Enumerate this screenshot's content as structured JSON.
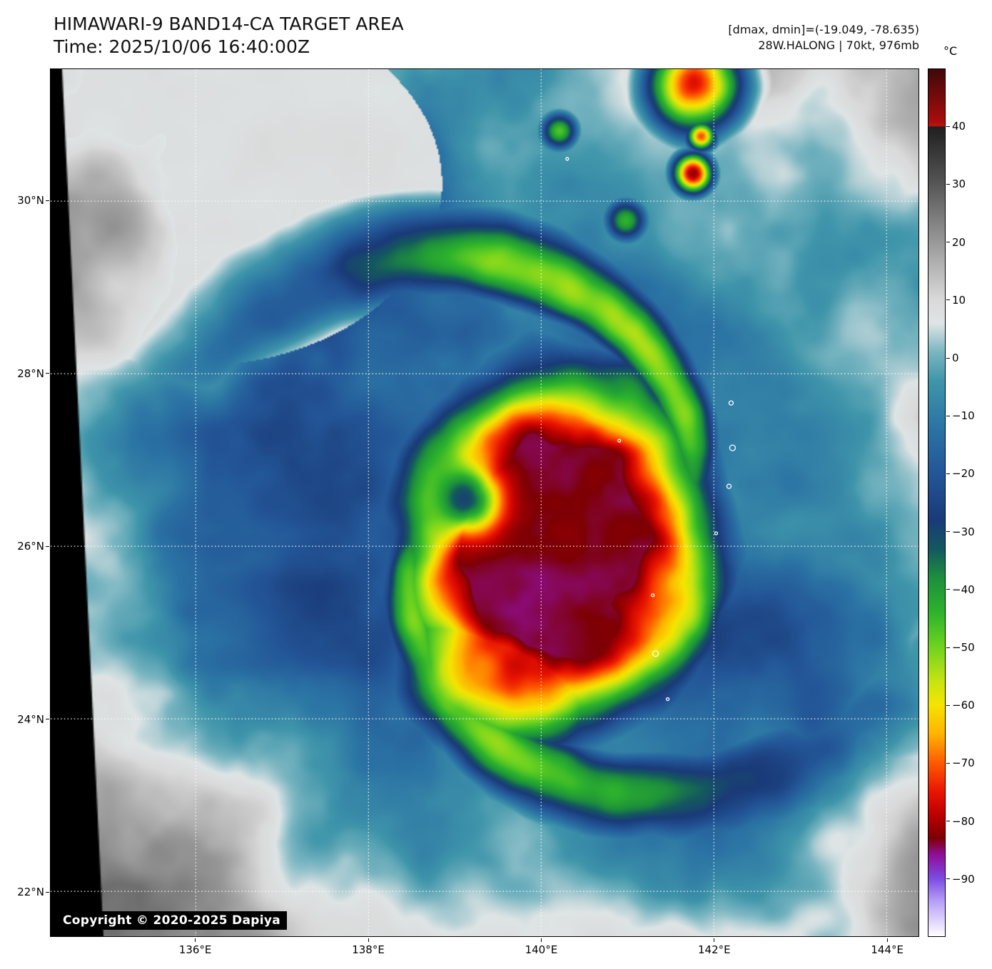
{
  "header": {
    "title": "HIMAWARI-9 BAND14-CA TARGET AREA",
    "time": "Time: 2025/10/06 16:40:00Z",
    "dmax_dmin": "[dmax, dmin]=(-19.049, -78.635)",
    "storm_info": "28W.HALONG | 70kt, 976mb"
  },
  "map": {
    "copyright": "Copyright © 2020-2025 Dapiya",
    "lat_ticks": [
      {
        "label": "30°N",
        "value": 30
      },
      {
        "label": "28°N",
        "value": 28
      },
      {
        "label": "26°N",
        "value": 26
      },
      {
        "label": "24°N",
        "value": 24
      },
      {
        "label": "22°N",
        "value": 22
      }
    ],
    "lon_ticks": [
      {
        "label": "136°E",
        "value": 136
      },
      {
        "label": "138°E",
        "value": 138
      },
      {
        "label": "140°E",
        "value": 140
      },
      {
        "label": "142°E",
        "value": 142
      },
      {
        "label": "144°E",
        "value": 144
      }
    ]
  },
  "colorbar": {
    "unit": "°C",
    "ticks": [
      {
        "label": "40",
        "value": 40
      },
      {
        "label": "30",
        "value": 30
      },
      {
        "label": "20",
        "value": 20
      },
      {
        "label": "10",
        "value": 10
      },
      {
        "label": "0",
        "value": 0
      },
      {
        "label": "−10",
        "value": -10
      },
      {
        "label": "−20",
        "value": -20
      },
      {
        "label": "−30",
        "value": -30
      },
      {
        "label": "−40",
        "value": -40
      },
      {
        "label": "−50",
        "value": -50
      },
      {
        "label": "−60",
        "value": -60
      },
      {
        "label": "−70",
        "value": -70
      },
      {
        "label": "−80",
        "value": -80
      },
      {
        "label": "−90",
        "value": -90
      }
    ],
    "stops": [
      {
        "t": 50,
        "c": "#3f0808"
      },
      {
        "t": 41,
        "c": "#a80d0d"
      },
      {
        "t": 40.2,
        "c": "#c01212"
      },
      {
        "t": 40,
        "c": "#1f1f1f"
      },
      {
        "t": 30,
        "c": "#575757"
      },
      {
        "t": 20,
        "c": "#999999"
      },
      {
        "t": 10,
        "c": "#dadada"
      },
      {
        "t": 6,
        "c": "#dee4e5"
      },
      {
        "t": 1,
        "c": "#79b5c1"
      },
      {
        "t": -4,
        "c": "#3f95aa"
      },
      {
        "t": -12,
        "c": "#2b74a4"
      },
      {
        "t": -20,
        "c": "#235697"
      },
      {
        "t": -28,
        "c": "#1a3a78"
      },
      {
        "t": -33,
        "c": "#14585f"
      },
      {
        "t": -38,
        "c": "#1d8f3c"
      },
      {
        "t": -44,
        "c": "#2db32c"
      },
      {
        "t": -50,
        "c": "#6fd31f"
      },
      {
        "t": -56,
        "c": "#c8e412"
      },
      {
        "t": -60,
        "c": "#f5e400"
      },
      {
        "t": -65,
        "c": "#ffb300"
      },
      {
        "t": -70,
        "c": "#ff5a00"
      },
      {
        "t": -75,
        "c": "#e91500"
      },
      {
        "t": -79,
        "c": "#bc0000"
      },
      {
        "t": -83,
        "c": "#7d0004"
      },
      {
        "t": -86,
        "c": "#8f0f9c"
      },
      {
        "t": -90,
        "c": "#7c4ce2"
      },
      {
        "t": -94,
        "c": "#b7a0f6"
      },
      {
        "t": -100,
        "c": "#ffffff"
      }
    ]
  }
}
